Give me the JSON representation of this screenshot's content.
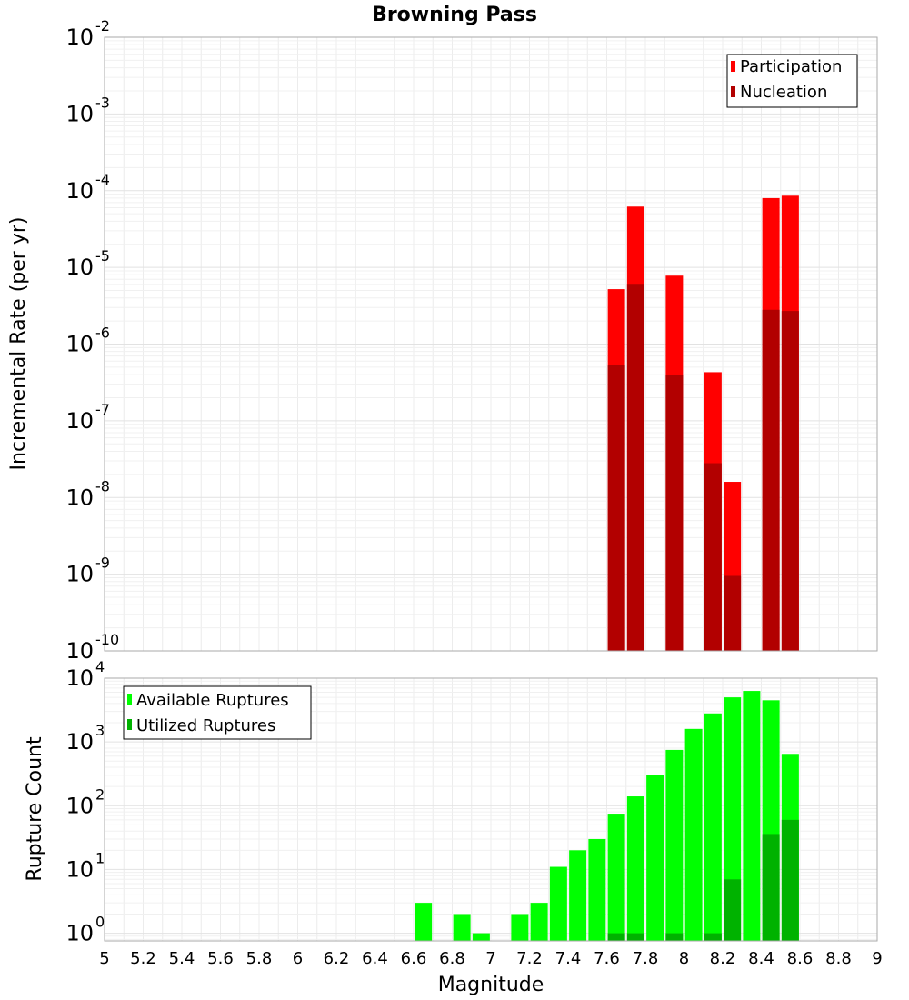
{
  "chart_data": [
    {
      "type": "bar",
      "title": "Browning Pass",
      "xlabel": "",
      "ylabel": "Incremental Rate (per yr)",
      "xlim": [
        5,
        9
      ],
      "yscale": "log",
      "ylim_exp": [
        -10,
        -2
      ],
      "legend": "top-right",
      "series": [
        {
          "name": "Participation",
          "color": "#ff0000",
          "points": [
            [
              7.65,
              5.2e-06
            ],
            [
              7.75,
              6.2e-05
            ],
            [
              7.95,
              7.8e-06
            ],
            [
              8.15,
              4.3e-07
            ],
            [
              8.25,
              1.6e-08
            ],
            [
              8.45,
              8e-05
            ],
            [
              8.55,
              8.6e-05
            ]
          ]
        },
        {
          "name": "Nucleation",
          "color": "#b20000",
          "points": [
            [
              7.65,
              5.4e-07
            ],
            [
              7.75,
              6.1e-06
            ],
            [
              7.95,
              4e-07
            ],
            [
              8.15,
              2.8e-08
            ],
            [
              8.25,
              9.5e-10
            ],
            [
              8.45,
              2.8e-06
            ],
            [
              8.55,
              2.7e-06
            ]
          ]
        }
      ]
    },
    {
      "type": "bar",
      "title": "",
      "xlabel": "Magnitude",
      "ylabel": "Rupture Count",
      "xlim": [
        5,
        9
      ],
      "yscale": "log",
      "ylim_exp": [
        -0.12,
        4
      ],
      "legend": "top-left",
      "series": [
        {
          "name": "Available Ruptures",
          "color": "#00ff00",
          "points": [
            [
              6.65,
              3
            ],
            [
              6.85,
              2
            ],
            [
              6.95,
              1
            ],
            [
              7.15,
              2
            ],
            [
              7.25,
              3
            ],
            [
              7.35,
              11
            ],
            [
              7.45,
              20
            ],
            [
              7.55,
              30
            ],
            [
              7.65,
              75
            ],
            [
              7.75,
              140
            ],
            [
              7.85,
              300
            ],
            [
              7.95,
              750
            ],
            [
              8.05,
              1600
            ],
            [
              8.15,
              2800
            ],
            [
              8.25,
              5000
            ],
            [
              8.35,
              6300
            ],
            [
              8.45,
              4500
            ],
            [
              8.55,
              650
            ]
          ]
        },
        {
          "name": "Utilized Ruptures",
          "color": "#00b200",
          "points": [
            [
              7.65,
              1
            ],
            [
              7.75,
              1
            ],
            [
              7.95,
              1
            ],
            [
              8.15,
              1
            ],
            [
              8.25,
              7
            ],
            [
              8.45,
              36
            ],
            [
              8.55,
              60
            ]
          ]
        }
      ]
    }
  ],
  "x_ticks": [
    "5",
    "5.2",
    "5.4",
    "5.6",
    "5.8",
    "6",
    "6.2",
    "6.4",
    "6.6",
    "6.8",
    "7",
    "7.2",
    "7.4",
    "7.6",
    "7.8",
    "8",
    "8.2",
    "8.4",
    "8.6",
    "8.8",
    "9"
  ],
  "top_y_ticks": [
    {
      "base": "10",
      "exp": "-10"
    },
    {
      "base": "10",
      "exp": "-9"
    },
    {
      "base": "10",
      "exp": "-8"
    },
    {
      "base": "10",
      "exp": "-7"
    },
    {
      "base": "10",
      "exp": "-6"
    },
    {
      "base": "10",
      "exp": "-5"
    },
    {
      "base": "10",
      "exp": "-4"
    },
    {
      "base": "10",
      "exp": "-3"
    },
    {
      "base": "10",
      "exp": "-2"
    }
  ],
  "bottom_y_ticks": [
    {
      "base": "10",
      "exp": "0"
    },
    {
      "base": "10",
      "exp": "1"
    },
    {
      "base": "10",
      "exp": "2"
    },
    {
      "base": "10",
      "exp": "3"
    },
    {
      "base": "10",
      "exp": "4"
    }
  ]
}
